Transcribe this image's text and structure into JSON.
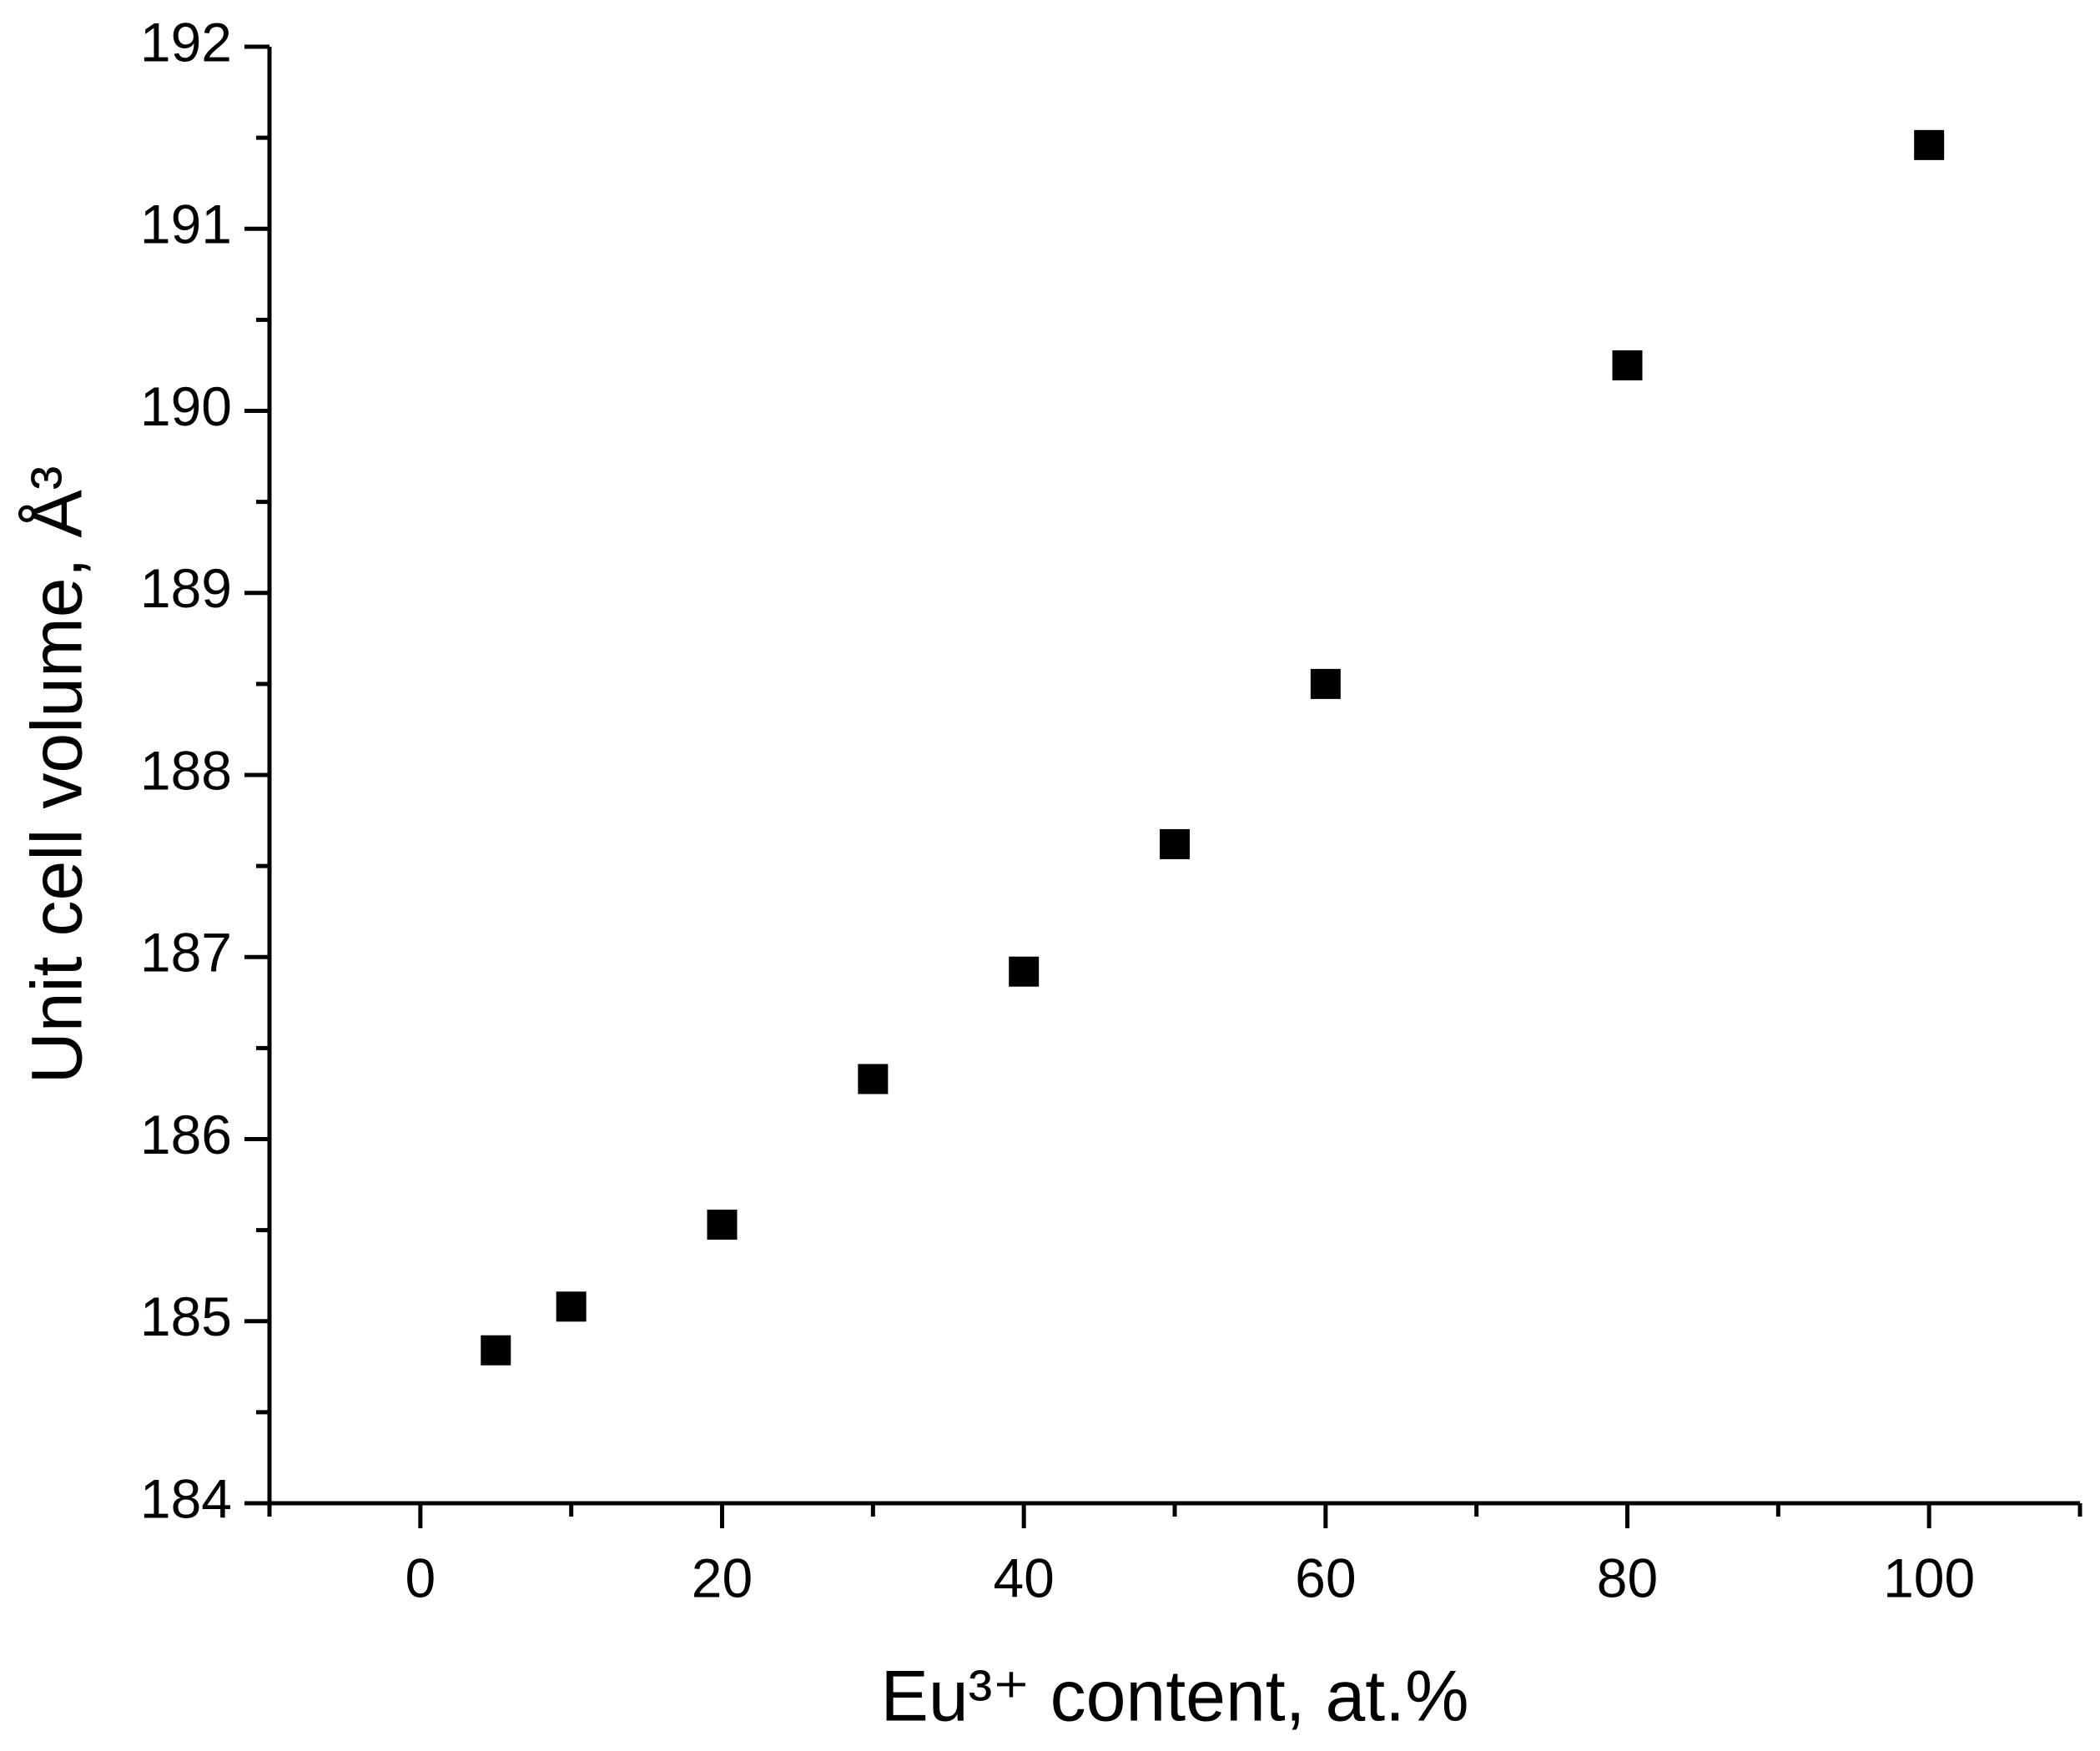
{
  "chart_data": {
    "type": "scatter",
    "x_label": "Eu³⁺ content, at.%",
    "y_label": "Unit cell volume, Å³",
    "x": [
      5,
      10,
      20,
      30,
      40,
      50,
      60,
      80,
      100
    ],
    "series": [
      {
        "name": "Unit cell volume",
        "color": "#000000",
        "values": [
          184.84,
          185.08,
          185.53,
          186.33,
          186.92,
          187.62,
          188.5,
          190.25,
          191.46
        ]
      }
    ],
    "xlim": [
      -10,
      110
    ],
    "xticks": [
      0,
      20,
      40,
      60,
      80,
      100
    ],
    "ylim": [
      184,
      192
    ],
    "yticks": [
      184,
      185,
      186,
      187,
      188,
      189,
      190,
      191,
      192
    ],
    "grid": false
  }
}
